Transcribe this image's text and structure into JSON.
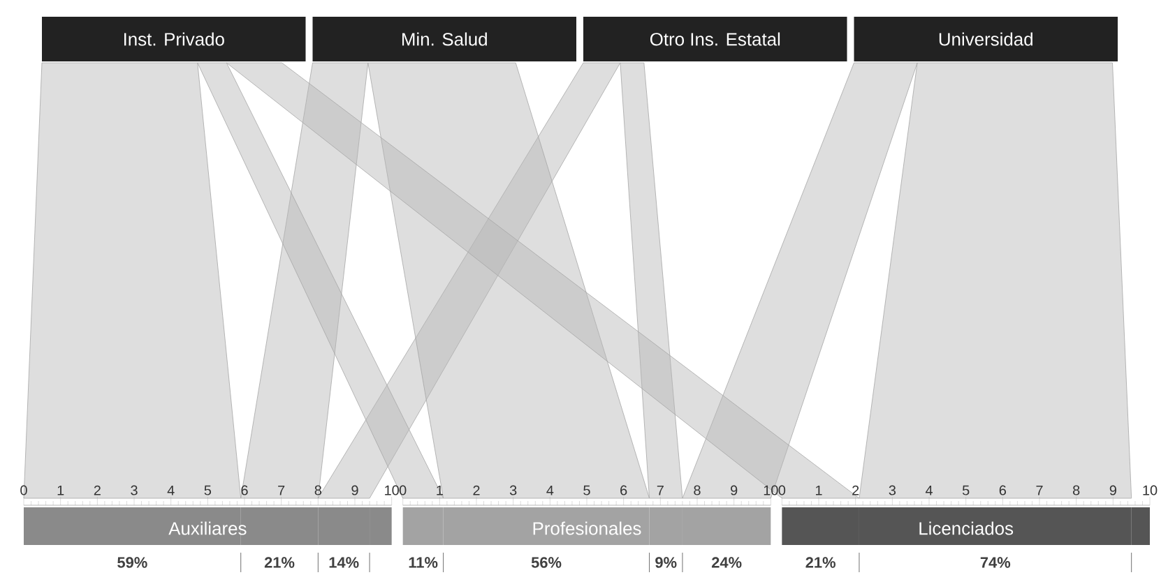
{
  "chart_data": [
    {
      "type": "other",
      "categories": [
        "Inst. Privado",
        "Min. Salud",
        "Otro Ins. Estatal",
        "Universidad"
      ],
      "colors": [
        "#222222",
        "#222222",
        "#222222",
        "#222222"
      ],
      "color": "#b5b5b5"
    },
    {
      "type": "bar",
      "orientation": "horizontal",
      "stacked": true,
      "title": "Auxiliares",
      "categories": [
        null
      ],
      "xlim": [
        0,
        10
      ],
      "xticks": [
        0,
        1,
        2,
        3,
        4,
        5,
        6,
        7,
        8,
        9,
        10
      ],
      "annotations": [
        "59%",
        "21%",
        "14%"
      ],
      "series": [
        {
          "color": "#8a8a8a",
          "values": [
            5.9
          ]
        },
        {
          "color": "#8a8a8a",
          "values": [
            2.1
          ]
        },
        {
          "color": "#8a8a8a",
          "values": [
            1.4
          ]
        },
        {
          "color": "#8a8a8a",
          "values": [
            null
          ]
        },
        {
          "color": "#8a8a8a",
          "values": [
            0.6
          ]
        }
      ]
    },
    {
      "type": "bar",
      "orientation": "horizontal",
      "stacked": true,
      "title": "Profesionales",
      "categories": [
        null
      ],
      "xlim": [
        0,
        10
      ],
      "xticks": [
        0,
        1,
        2,
        3,
        4,
        5,
        6,
        7,
        8,
        9,
        10
      ],
      "annotations": [
        "11%",
        "56%",
        "9%",
        "24%"
      ],
      "series": [
        {
          "color": "#a3a3a3",
          "values": [
            1.1
          ]
        },
        {
          "color": "#a3a3a3",
          "values": [
            5.6
          ]
        },
        {
          "color": "#a3a3a3",
          "values": [
            0.9
          ]
        },
        {
          "color": "#a3a3a3",
          "values": [
            2.4
          ]
        }
      ]
    },
    {
      "type": "bar",
      "orientation": "horizontal",
      "stacked": true,
      "title": "Licenciados",
      "categories": [
        null
      ],
      "xlim": [
        0,
        10
      ],
      "xticks": [
        0,
        1,
        2,
        3,
        4,
        5,
        6,
        7,
        8,
        9,
        10
      ],
      "annotations": [
        "21%",
        "74%"
      ],
      "series": [
        {
          "color": "#555555",
          "values": [
            2.1
          ]
        },
        {
          "color": "#555555",
          "values": [
            null
          ]
        },
        {
          "color": "#555555",
          "values": [
            null
          ]
        },
        {
          "color": "#555555",
          "values": [
            7.4
          ]
        },
        {
          "color": "#555555",
          "values": [
            0.5
          ]
        }
      ]
    }
  ]
}
